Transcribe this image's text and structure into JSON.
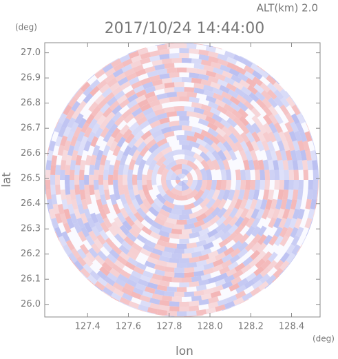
{
  "chart_data": {
    "type": "radar-image",
    "title": "2017/10/24 14:44:00",
    "subtitle": "ALT(km) 2.0",
    "x_label": "lon",
    "y_label": "lat",
    "x_unit": "(deg)",
    "y_unit": "(deg)",
    "xlim": [
      127.19,
      128.54
    ],
    "ylim": [
      25.95,
      27.04
    ],
    "xticks": [
      127.4,
      127.6,
      127.8,
      {
        "value": 128.0,
        "label": "128.0"
      },
      128.2,
      128.4
    ],
    "yticks": [
      {
        "value": 26.0,
        "label": "26.0"
      },
      26.1,
      26.2,
      26.3,
      26.4,
      26.5,
      26.6,
      26.7,
      26.8,
      26.9,
      {
        "value": 27.0,
        "label": "27.0"
      }
    ]
  }
}
